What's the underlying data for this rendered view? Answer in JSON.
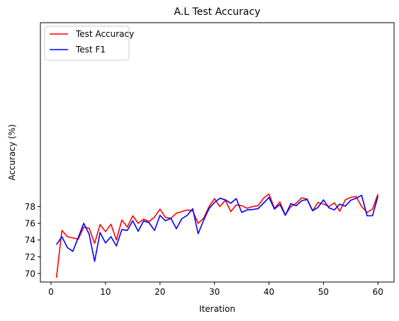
{
  "chart_data": {
    "type": "line",
    "title": "A.L Test Accuracy",
    "xlabel": "Iteration",
    "ylabel": "Accuracy (%)",
    "xlim": [
      -1.95,
      62.95
    ],
    "ylim": [
      68.98,
      99.98
    ],
    "xticks": [
      0,
      10,
      20,
      30,
      40,
      50,
      60
    ],
    "yticks": [
      70,
      72,
      74,
      76,
      78
    ],
    "grid": false,
    "legend": "top-left",
    "x": [
      1,
      2,
      3,
      4,
      5,
      6,
      7,
      8,
      9,
      10,
      11,
      12,
      13,
      14,
      15,
      16,
      17,
      18,
      19,
      20,
      21,
      22,
      23,
      24,
      25,
      26,
      27,
      28,
      29,
      30,
      31,
      32,
      33,
      34,
      35,
      36,
      37,
      38,
      39,
      40,
      41,
      42,
      43,
      44,
      45,
      46,
      47,
      48,
      49,
      50,
      51,
      52,
      53,
      54,
      55,
      56,
      57,
      58,
      59,
      60
    ],
    "series": [
      {
        "name": "Test Accuracy",
        "color": "#ff0000",
        "values": [
          69.5,
          75.15,
          74.4,
          74.25,
          74.1,
          75.55,
          75.4,
          73.6,
          75.85,
          75.0,
          75.9,
          74.0,
          76.4,
          75.55,
          76.9,
          76.0,
          76.5,
          76.2,
          76.75,
          77.7,
          76.7,
          76.6,
          77.2,
          77.4,
          77.6,
          77.5,
          76.0,
          76.6,
          78.0,
          78.95,
          78.0,
          78.75,
          77.4,
          78.2,
          78.1,
          77.8,
          78.0,
          78.1,
          79.0,
          79.5,
          77.8,
          78.55,
          77.0,
          78.0,
          78.4,
          79.05,
          78.9,
          77.5,
          78.5,
          78.3,
          78.0,
          78.45,
          77.45,
          78.8,
          79.1,
          79.2,
          78.0,
          77.3,
          77.7,
          79.5
        ]
      },
      {
        "name": "Test F1",
        "color": "#0000ff",
        "values": [
          73.45,
          74.4,
          73.1,
          72.65,
          74.3,
          76.0,
          74.7,
          71.45,
          74.9,
          73.65,
          74.4,
          73.3,
          75.25,
          75.15,
          76.3,
          75.05,
          76.3,
          76.05,
          75.15,
          76.95,
          76.3,
          76.6,
          75.35,
          76.55,
          76.95,
          77.75,
          74.75,
          76.35,
          77.75,
          78.5,
          79.0,
          78.8,
          78.4,
          78.95,
          77.3,
          77.6,
          77.65,
          77.75,
          78.4,
          79.1,
          77.7,
          78.25,
          76.95,
          78.35,
          78.1,
          78.7,
          78.85,
          77.5,
          77.9,
          78.8,
          77.85,
          77.6,
          78.3,
          78.05,
          78.75,
          79.0,
          79.35,
          76.9,
          76.9,
          79.25
        ]
      }
    ]
  }
}
